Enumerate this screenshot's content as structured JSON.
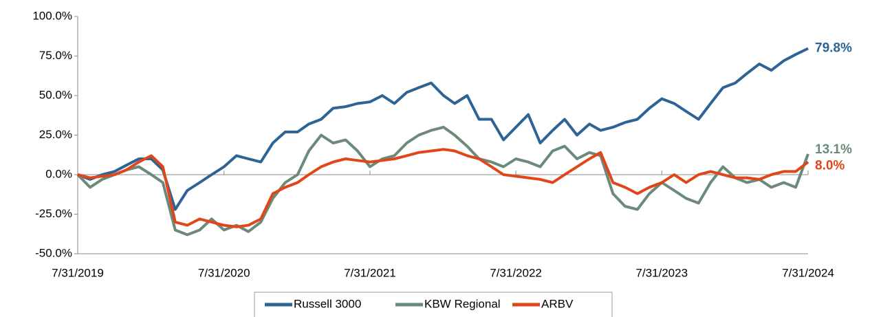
{
  "chart_data": {
    "type": "line",
    "x": [
      "7/31/2019",
      "8/31/2019",
      "9/30/2019",
      "10/31/2019",
      "11/30/2019",
      "12/31/2019",
      "1/31/2020",
      "2/29/2020",
      "3/31/2020",
      "4/30/2020",
      "5/31/2020",
      "6/30/2020",
      "7/31/2020",
      "8/31/2020",
      "9/30/2020",
      "10/31/2020",
      "11/30/2020",
      "12/31/2020",
      "1/31/2021",
      "2/28/2021",
      "3/31/2021",
      "4/30/2021",
      "5/31/2021",
      "6/30/2021",
      "7/31/2021",
      "8/31/2021",
      "9/30/2021",
      "10/31/2021",
      "11/30/2021",
      "12/31/2021",
      "1/31/2022",
      "2/28/2022",
      "3/31/2022",
      "4/30/2022",
      "5/31/2022",
      "6/30/2022",
      "7/31/2022",
      "8/31/2022",
      "9/30/2022",
      "10/31/2022",
      "11/30/2022",
      "12/31/2022",
      "1/31/2023",
      "2/28/2023",
      "3/31/2023",
      "4/30/2023",
      "5/31/2023",
      "6/30/2023",
      "7/31/2023",
      "8/31/2023",
      "9/30/2023",
      "10/31/2023",
      "11/30/2023",
      "12/31/2023",
      "1/31/2024",
      "2/29/2024",
      "3/31/2024",
      "4/30/2024",
      "5/31/2024",
      "6/30/2024",
      "7/31/2024"
    ],
    "series": [
      {
        "name": "Russell 3000",
        "color": "#2e6396",
        "end_label": {
          "value": 79.8,
          "label": "79.8%"
        },
        "values": [
          0,
          -3,
          0,
          2,
          6,
          10,
          10,
          3,
          -22,
          -10,
          -5,
          0,
          5,
          12,
          10,
          8,
          20,
          27,
          27,
          32,
          35,
          42,
          43,
          45,
          46,
          50,
          45,
          52,
          55,
          58,
          50,
          45,
          50,
          35,
          35,
          22,
          30,
          38,
          20,
          28,
          35,
          25,
          32,
          28,
          30,
          33,
          35,
          42,
          48,
          45,
          40,
          35,
          45,
          55,
          58,
          64,
          70,
          66,
          72,
          76,
          79.8
        ]
      },
      {
        "name": "KBW Regional",
        "color": "#6b8a78",
        "end_label": {
          "value": 13.1,
          "label": "13.1%"
        },
        "values": [
          0,
          -8,
          -3,
          0,
          3,
          5,
          0,
          -5,
          -35,
          -38,
          -35,
          -28,
          -35,
          -32,
          -36,
          -30,
          -15,
          -5,
          0,
          15,
          25,
          20,
          22,
          15,
          5,
          10,
          12,
          20,
          25,
          28,
          30,
          25,
          18,
          10,
          8,
          5,
          10,
          8,
          5,
          15,
          18,
          10,
          14,
          12,
          -12,
          -20,
          -22,
          -12,
          -5,
          -10,
          -15,
          -18,
          -5,
          5,
          -2,
          -5,
          -3,
          -8,
          -5,
          -8,
          13.1
        ]
      },
      {
        "name": "ARBV",
        "color": "#e0461a",
        "end_label": {
          "value": 8.0,
          "label": "8.0%"
        },
        "values": [
          0,
          -2,
          -1,
          0,
          3,
          8,
          12,
          5,
          -30,
          -32,
          -28,
          -30,
          -32,
          -33,
          -32,
          -28,
          -12,
          -8,
          -5,
          0,
          5,
          8,
          10,
          9,
          8,
          9,
          10,
          12,
          14,
          15,
          16,
          15,
          12,
          10,
          5,
          0,
          -1,
          -2,
          -3,
          -5,
          0,
          5,
          10,
          14,
          -5,
          -8,
          -12,
          -8,
          -5,
          0,
          -5,
          0,
          2,
          0,
          -2,
          -2,
          -3,
          0,
          2,
          2,
          8.0
        ]
      }
    ],
    "xlim": [
      "7/31/2019",
      "7/31/2024"
    ],
    "xticks": [
      "7/31/2019",
      "7/31/2020",
      "7/31/2021",
      "7/31/2022",
      "7/31/2023",
      "7/31/2024"
    ],
    "ylim": [
      -50,
      100
    ],
    "yticks": [
      {
        "value": -50,
        "label": "-50.0%"
      },
      {
        "value": -25,
        "label": "-25.0%"
      },
      {
        "value": 0,
        "label": "0.0%"
      },
      {
        "value": 25,
        "label": "25.0%"
      },
      {
        "value": 50,
        "label": "50.0%"
      },
      {
        "value": 75,
        "label": "75.0%"
      },
      {
        "value": 100,
        "label": "100.0%"
      }
    ],
    "grid": false,
    "legend": "bottom"
  }
}
